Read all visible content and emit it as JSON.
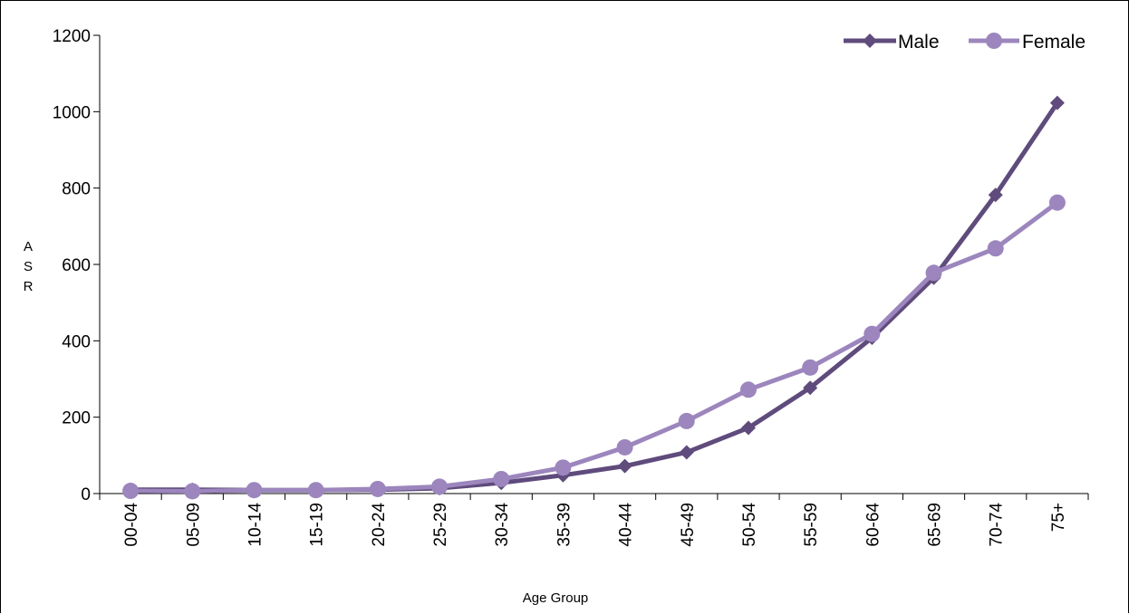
{
  "chart_data": {
    "type": "line",
    "title": "",
    "xlabel": "Age Group",
    "ylabel": "ASR",
    "ylabel_letters": [
      "A",
      "S",
      "R"
    ],
    "ylim": [
      0,
      1200
    ],
    "yticks": [
      0,
      200,
      400,
      600,
      800,
      1000,
      1200
    ],
    "grid": false,
    "legend_position": "top-right",
    "categories": [
      "00-04",
      "05-09",
      "10-14",
      "15-19",
      "20-24",
      "25-29",
      "30-34",
      "35-39",
      "40-44",
      "45-49",
      "50-54",
      "55-59",
      "60-64",
      "65-69",
      "70-74",
      "75+"
    ],
    "series": [
      {
        "name": "Male",
        "color": "#5f4b7c",
        "marker": "diamond",
        "values": [
          10,
          10,
          9,
          9,
          10,
          14,
          28,
          48,
          72,
          108,
          172,
          277,
          408,
          565,
          782,
          1023
        ]
      },
      {
        "name": "Female",
        "color": "#9c86bd",
        "marker": "circle",
        "values": [
          7,
          6,
          9,
          9,
          12,
          18,
          38,
          68,
          121,
          190,
          272,
          330,
          418,
          578,
          642,
          762
        ]
      }
    ]
  }
}
